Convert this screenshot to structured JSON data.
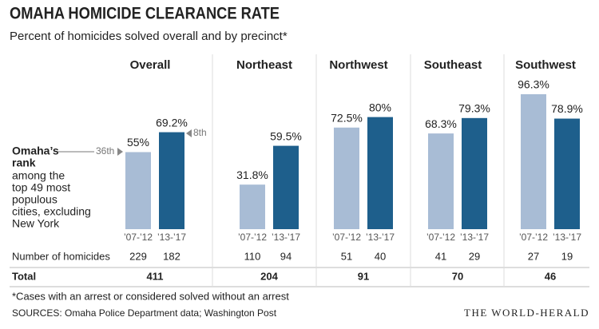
{
  "chart_data": {
    "type": "bar",
    "title": "OMAHA HOMICIDE CLEARANCE RATE",
    "subtitle": "Percent of homicides solved overall and by precinct*",
    "categories": [
      "’07-’12",
      "’13-’17"
    ],
    "colors": [
      "#a8bcd5",
      "#1e5f8c"
    ],
    "ylim": [
      0,
      100
    ],
    "panels": [
      {
        "name": "Overall",
        "values": [
          55,
          69.2
        ],
        "value_labels": [
          "55%",
          "69.2%"
        ],
        "homicides": [
          229,
          182
        ],
        "total": 411
      },
      {
        "name": "Northeast",
        "values": [
          31.8,
          59.5
        ],
        "value_labels": [
          "31.8%",
          "59.5%"
        ],
        "homicides": [
          110,
          94
        ],
        "total": 204
      },
      {
        "name": "Northwest",
        "values": [
          72.5,
          80
        ],
        "value_labels": [
          "72.5%",
          "80%"
        ],
        "homicides": [
          51,
          40
        ],
        "total": 91
      },
      {
        "name": "Southeast",
        "values": [
          68.3,
          79.3
        ],
        "value_labels": [
          "68.3%",
          "79.3%"
        ],
        "homicides": [
          41,
          29
        ],
        "total": 70
      },
      {
        "name": "Southwest",
        "values": [
          96.3,
          78.9
        ],
        "value_labels": [
          "96.3%",
          "78.9%"
        ],
        "homicides": [
          27,
          19
        ],
        "total": 46
      }
    ],
    "rank_annotation": {
      "bold_lines": [
        "Omaha’s",
        "rank"
      ],
      "lines": [
        "among the",
        "top 49 most",
        "populous",
        "cities, excluding",
        "New York"
      ],
      "labels": [
        "36th",
        "8th"
      ]
    },
    "row_labels": [
      "Number of homicides",
      "Total"
    ],
    "footnote": "*Cases with an arrest or considered solved without an arrest",
    "source": "SOURCES: Omaha Police Department data; Washington Post",
    "credit": "THE WORLD-HERALD"
  }
}
